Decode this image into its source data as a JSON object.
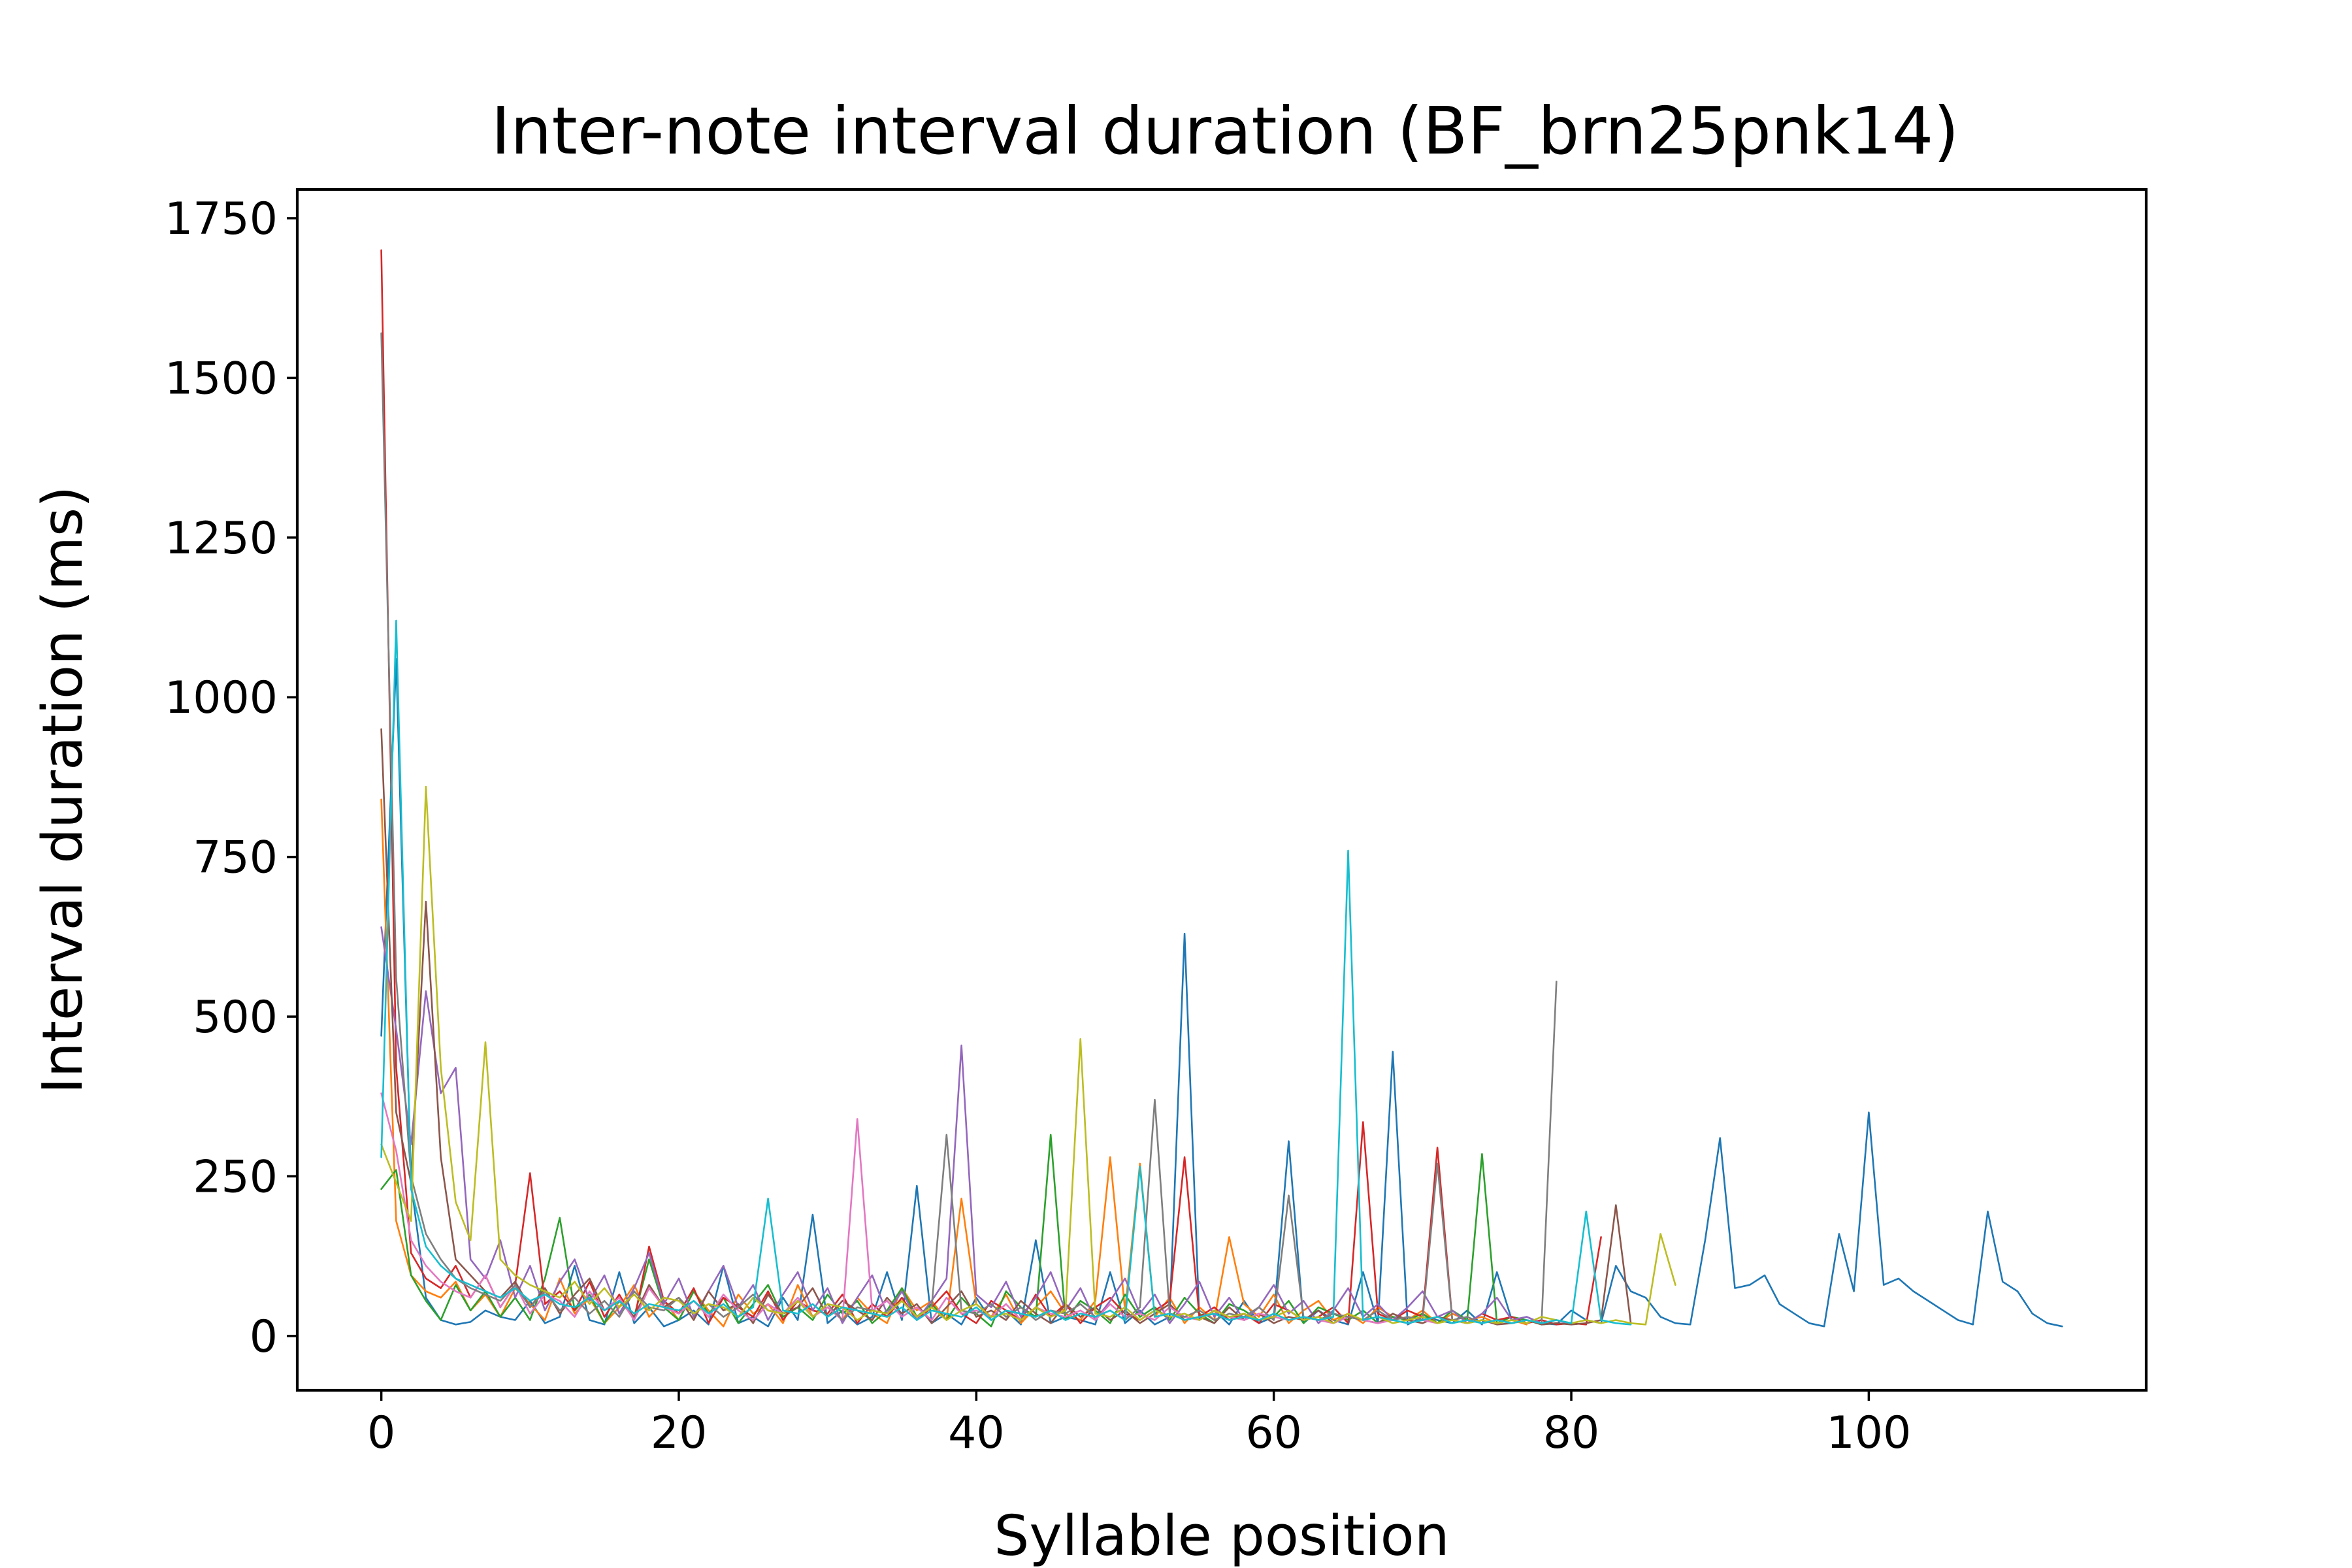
{
  "chart_data": {
    "type": "line",
    "title": "Inter-note interval duration (BF_brn25pnk14)",
    "xlabel": "Syllable position",
    "ylabel": "Interval duration (ms)",
    "xlim": [
      -5.65,
      118.65
    ],
    "ylim": [
      -85,
      1795
    ],
    "xticks": [
      0,
      20,
      40,
      60,
      80,
      100
    ],
    "yticks": [
      0,
      250,
      500,
      750,
      1000,
      1250,
      1500,
      1750
    ],
    "legend": "none",
    "grid": false,
    "series": [
      {
        "color": "#1f77b4",
        "values": [
          470,
          1060,
          240,
          60,
          25,
          18,
          22,
          40,
          30,
          25,
          55,
          20,
          30,
          110,
          25,
          18,
          100,
          20,
          45,
          15,
          25,
          40,
          18,
          110,
          20,
          30,
          15,
          60,
          25,
          190,
          20,
          40,
          18,
          30,
          100,
          25,
          235,
          20,
          35,
          18,
          60,
          25,
          40,
          18,
          150,
          20,
          30,
          25,
          18,
          100,
          20,
          40,
          18,
          30,
          630,
          25,
          40,
          18,
          55,
          20,
          30,
          305,
          20,
          40,
          25,
          18,
          100,
          20,
          445,
          18,
          30,
          25,
          20,
          40,
          18,
          100,
          25,
          30,
          20,
          18,
          40,
          25,
          20,
          110,
          70,
          60,
          30,
          20,
          18,
          150,
          310,
          75,
          80,
          95,
          50,
          35,
          20,
          15,
          160,
          70,
          350,
          80,
          90,
          70,
          55,
          40,
          25,
          18,
          195,
          85,
          70,
          35,
          20,
          15
        ]
      },
      {
        "color": "#ff7f0e",
        "values": [
          840,
          180,
          95,
          70,
          60,
          85,
          40,
          65,
          30,
          75,
          50,
          25,
          90,
          35,
          60,
          20,
          45,
          80,
          30,
          55,
          25,
          70,
          40,
          15,
          65,
          35,
          50,
          20,
          80,
          30,
          45,
          25,
          60,
          35,
          20,
          75,
          40,
          55,
          25,
          215,
          50,
          30,
          65,
          20,
          45,
          70,
          35,
          25,
          55,
          280,
          40,
          270,
          30,
          60,
          20,
          45,
          25,
          155,
          50,
          30,
          65,
          20,
          40,
          55,
          25,
          35,
          20,
          45,
          30,
          25,
          40,
          20,
          35,
          25,
          30,
          20,
          25,
          18
        ]
      },
      {
        "color": "#2ca02c",
        "values": [
          230,
          260,
          95,
          55,
          25,
          80,
          40,
          70,
          30,
          60,
          25,
          90,
          185,
          40,
          65,
          20,
          55,
          30,
          120,
          45,
          25,
          70,
          35,
          60,
          20,
          50,
          80,
          30,
          45,
          25,
          65,
          35,
          55,
          20,
          40,
          75,
          30,
          50,
          25,
          60,
          35,
          15,
          70,
          45,
          30,
          315,
          25,
          55,
          40,
          20,
          65,
          30,
          45,
          25,
          60,
          35,
          20,
          50,
          40,
          25,
          30,
          55,
          20,
          45,
          35,
          25,
          40,
          20,
          30,
          25,
          35,
          20,
          40,
          25,
          285,
          20,
          30,
          25,
          18,
          20
        ]
      },
      {
        "color": "#d62728",
        "values": [
          1700,
          420,
          130,
          90,
          75,
          110,
          60,
          95,
          45,
          80,
          255,
          50,
          70,
          40,
          85,
          30,
          65,
          25,
          140,
          55,
          35,
          75,
          20,
          60,
          45,
          30,
          70,
          25,
          55,
          40,
          35,
          65,
          20,
          50,
          30,
          60,
          25,
          45,
          70,
          35,
          20,
          55,
          40,
          25,
          65,
          30,
          50,
          20,
          45,
          60,
          35,
          25,
          40,
          55,
          280,
          30,
          45,
          25,
          35,
          20,
          50,
          40,
          25,
          30,
          45,
          20,
          335,
          35,
          25,
          40,
          30,
          295,
          25,
          20,
          35,
          25,
          30,
          20,
          25,
          18,
          20,
          18,
          155
        ]
      },
      {
        "color": "#9467bd",
        "values": [
          640,
          480,
          300,
          540,
          380,
          420,
          120,
          90,
          150,
          60,
          110,
          40,
          85,
          120,
          55,
          95,
          35,
          75,
          130,
          50,
          90,
          30,
          70,
          110,
          45,
          80,
          25,
          65,
          100,
          40,
          75,
          20,
          60,
          95,
          35,
          70,
          25,
          55,
          90,
          455,
          65,
          45,
          85,
          30,
          60,
          100,
          40,
          75,
          25,
          55,
          90,
          35,
          65,
          20,
          50,
          85,
          30,
          60,
          25,
          45,
          80,
          35,
          55,
          20,
          40,
          75,
          30,
          50,
          25,
          45,
          70,
          30,
          40,
          20,
          35,
          60,
          25,
          30,
          20,
          25,
          18
        ]
      },
      {
        "color": "#8c564b",
        "values": [
          950,
          350,
          240,
          680,
          280,
          120,
          95,
          70,
          60,
          85,
          45,
          75,
          35,
          65,
          90,
          40,
          55,
          30,
          80,
          45,
          60,
          25,
          70,
          40,
          50,
          20,
          65,
          35,
          45,
          75,
          30,
          55,
          40,
          25,
          60,
          35,
          50,
          20,
          45,
          70,
          30,
          40,
          25,
          55,
          35,
          20,
          50,
          30,
          45,
          25,
          40,
          20,
          35,
          50,
          25,
          30,
          20,
          45,
          25,
          35,
          20,
          30,
          25,
          40,
          20,
          30,
          25,
          20,
          35,
          25,
          20,
          30,
          25,
          20,
          25,
          18,
          20,
          25,
          18,
          20,
          18,
          20,
          25,
          205,
          20
        ]
      },
      {
        "color": "#e377c2",
        "values": [
          380,
          290,
          150,
          110,
          85,
          70,
          60,
          95,
          45,
          80,
          35,
          65,
          55,
          30,
          70,
          40,
          60,
          25,
          75,
          45,
          35,
          55,
          30,
          65,
          40,
          25,
          50,
          35,
          60,
          30,
          45,
          25,
          340,
          40,
          55,
          30,
          45,
          25,
          60,
          35,
          40,
          30,
          50,
          25,
          45,
          35,
          30,
          40,
          25,
          50,
          30,
          35,
          25,
          45,
          30,
          25,
          40,
          30,
          25,
          35,
          30,
          25,
          30,
          25,
          20,
          30,
          25,
          20,
          25,
          20,
          25,
          20
        ]
      },
      {
        "color": "#7f7f7f",
        "values": [
          1570,
          560,
          250,
          160,
          120,
          90,
          75,
          65,
          55,
          80,
          45,
          70,
          40,
          60,
          35,
          55,
          30,
          70,
          45,
          40,
          60,
          35,
          50,
          30,
          45,
          65,
          40,
          35,
          55,
          30,
          50,
          25,
          45,
          40,
          35,
          55,
          30,
          45,
          315,
          40,
          35,
          50,
          30,
          45,
          25,
          40,
          35,
          50,
          30,
          40,
          25,
          45,
          370,
          35,
          30,
          40,
          25,
          35,
          30,
          45,
          25,
          220,
          30,
          25,
          35,
          30,
          25,
          40,
          25,
          30,
          25,
          270,
          25,
          30,
          20,
          25,
          20,
          25,
          20,
          555
        ]
      },
      {
        "color": "#bcbd22",
        "values": [
          300,
          240,
          180,
          860,
          420,
          210,
          150,
          460,
          120,
          95,
          80,
          70,
          60,
          85,
          50,
          75,
          45,
          65,
          40,
          60,
          55,
          35,
          50,
          45,
          30,
          60,
          40,
          35,
          55,
          30,
          50,
          45,
          25,
          40,
          35,
          55,
          30,
          45,
          25,
          40,
          50,
          30,
          35,
          25,
          45,
          30,
          40,
          465,
          35,
          30,
          45,
          25,
          40,
          30,
          35,
          25,
          40,
          30,
          35,
          25,
          30,
          40,
          25,
          30,
          20,
          35,
          25,
          30,
          20,
          25,
          30,
          20,
          25,
          20,
          25,
          20,
          25,
          20,
          30,
          25,
          20,
          25,
          20,
          25,
          20,
          18,
          160,
          80
        ]
      },
      {
        "color": "#17becf",
        "values": [
          280,
          1120,
          230,
          140,
          110,
          90,
          80,
          70,
          60,
          75,
          55,
          65,
          50,
          45,
          60,
          40,
          55,
          35,
          50,
          45,
          40,
          55,
          35,
          50,
          30,
          45,
          215,
          40,
          35,
          50,
          30,
          45,
          40,
          35,
          30,
          45,
          25,
          40,
          35,
          30,
          45,
          25,
          40,
          35,
          30,
          40,
          25,
          35,
          30,
          40,
          25,
          265,
          30,
          35,
          25,
          30,
          35,
          25,
          30,
          25,
          35,
          25,
          30,
          25,
          30,
          760,
          25,
          30,
          25,
          20,
          25,
          30,
          20,
          25,
          20,
          25,
          20,
          25,
          20,
          25,
          20,
          195,
          25,
          20,
          18
        ]
      }
    ]
  }
}
